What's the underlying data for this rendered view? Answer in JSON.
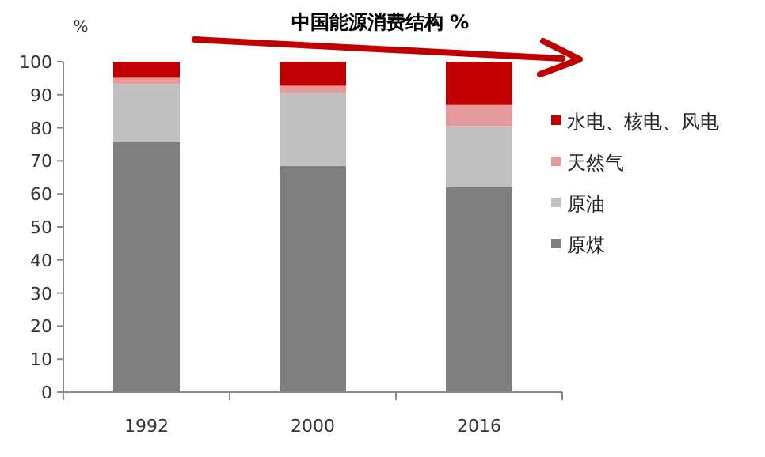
{
  "chart_data": {
    "type": "bar",
    "stacked": true,
    "title": "中国能源消费结构 %",
    "ylabel": "%",
    "categories": [
      "1992",
      "2000",
      "2016"
    ],
    "series": [
      {
        "name": "原煤",
        "color": "#808080",
        "values": [
          75.7,
          68.5,
          62.0
        ]
      },
      {
        "name": "原油",
        "color": "#c0c0c0",
        "values": [
          17.5,
          22.0,
          18.5
        ]
      },
      {
        "name": "天然气",
        "color": "#e6999b",
        "values": [
          1.9,
          2.2,
          6.4
        ]
      },
      {
        "name": "水电、核电、风电",
        "color": "#c00000",
        "values": [
          4.9,
          7.3,
          13.1
        ]
      }
    ],
    "ylim": [
      0,
      100
    ],
    "yticks": [
      0,
      10,
      20,
      30,
      40,
      50,
      60,
      70,
      80,
      90,
      100
    ],
    "legend": "right",
    "grid": false
  }
}
